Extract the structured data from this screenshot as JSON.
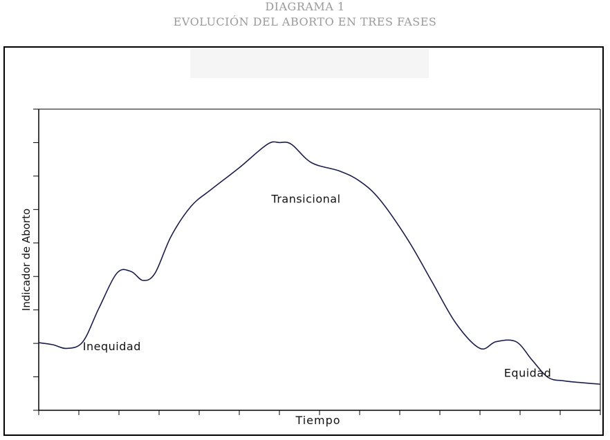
{
  "header": {
    "title_line1": "DIAGRAMA 1",
    "title_line2": "EVOLUCIÓN DEL ABORTO EN TRES FASES"
  },
  "chart_data": {
    "type": "line",
    "title": "DIAGRAMA 1",
    "subtitle": "EVOLUCIÓN DEL ABORTO EN TRES FASES",
    "xlabel": "Tiempo",
    "ylabel": "Indicador de Aborto",
    "xlim": [
      0,
      14
    ],
    "ylim": [
      0,
      9
    ],
    "x_tick_count": 15,
    "y_tick_count": 10,
    "x_tick_labels": [],
    "y_tick_labels": [],
    "grid": false,
    "line_color": "#1c1c4a",
    "series": [
      {
        "x": [
          0,
          0.35,
          0.7,
          1.1,
          1.5,
          1.95,
          2.3,
          2.6,
          2.9,
          3.3,
          3.8,
          4.3,
          5.0,
          5.7,
          6.0,
          6.3,
          6.8,
          7.5,
          8.0,
          8.5,
          9.2,
          9.8,
          10.4,
          11.0,
          11.4,
          11.9,
          12.3,
          12.7,
          13.1,
          13.6,
          14.0
        ],
        "y": [
          2.02,
          1.96,
          1.85,
          2.05,
          3.05,
          4.1,
          4.15,
          3.88,
          4.1,
          5.2,
          6.1,
          6.6,
          7.25,
          7.95,
          8.0,
          7.95,
          7.4,
          7.15,
          6.85,
          6.3,
          5.1,
          3.85,
          2.6,
          1.85,
          2.05,
          2.05,
          1.5,
          0.98,
          0.88,
          0.82,
          0.78
        ]
      }
    ],
    "annotations": [
      {
        "text": "Inequidad",
        "x": 1.1,
        "y": 1.8
      },
      {
        "text": "Transicional",
        "x": 5.8,
        "y": 6.2
      },
      {
        "text": "Equidad",
        "x": 11.6,
        "y": 1.0
      }
    ]
  }
}
